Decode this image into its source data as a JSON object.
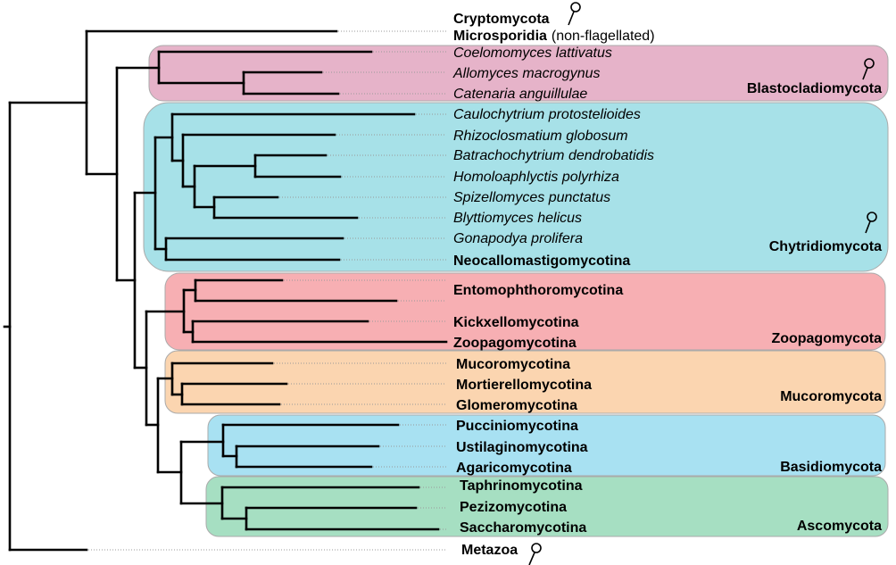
{
  "clades": [
    {
      "name": "Blastocladiomycota",
      "color": "#e6b3c9",
      "flagellated_icon": true
    },
    {
      "name": "Chytridiomycota",
      "color": "#a7e1e8",
      "flagellated_icon": true
    },
    {
      "name": "Zoopagomycota",
      "color": "#f7afb3",
      "flagellated_icon": false
    },
    {
      "name": "Mucoromycota",
      "color": "#fbd5b0",
      "flagellated_icon": false
    },
    {
      "name": "Basidiomycota",
      "color": "#a8e1f2",
      "flagellated_icon": false
    },
    {
      "name": "Ascomycota",
      "color": "#a6dfc2",
      "flagellated_icon": false
    }
  ],
  "leaves": {
    "cryptomycota": "Cryptomycota",
    "microsporidia": "Microsporidia",
    "microsporidia_note": "(non-flagellated)",
    "coelomomyces": "Coelomomyces lattivatus",
    "allomyces": "Allomyces macrogynus",
    "catenaria": "Catenaria anguillulae",
    "caulochytrium": "Caulochytrium protostelioides",
    "rhizoclosmatium": "Rhizoclosmatium globosum",
    "batrachochytrium": "Batrachochytrium dendrobatidis",
    "homoloaphlyctis": "Homoloaphlyctis polyrhiza",
    "spizellomyces": "Spizellomyces punctatus",
    "blyttiomyces": "Blyttiomyces helicus",
    "gonapodya": "Gonapodya prolifera",
    "neocallomastigomycotina": "Neocallomastigomycotina",
    "entomophthoromycotina": "Entomophthoromycotina",
    "kickxellomycotina": "Kickxellomycotina",
    "zoopagomycotina": "Zoopagomycotina",
    "mucoromycotina": "Mucoromycotina",
    "mortierellomycotina": "Mortierellomycotina",
    "glomeromycotina": "Glomeromycotina",
    "pucciniomycotina": "Pucciniomycotina",
    "ustilaginomycotina": "Ustilaginomycotina",
    "agaricomycotina": "Agaricomycotina",
    "taphrinomycotina": "Taphrinomycotina",
    "pezizomycotina": "Pezizomycotina",
    "saccharomycotina": "Saccharomycotina",
    "metazoa": "Metazoa"
  },
  "flagellum_icon": "flagellated-spore-icon"
}
